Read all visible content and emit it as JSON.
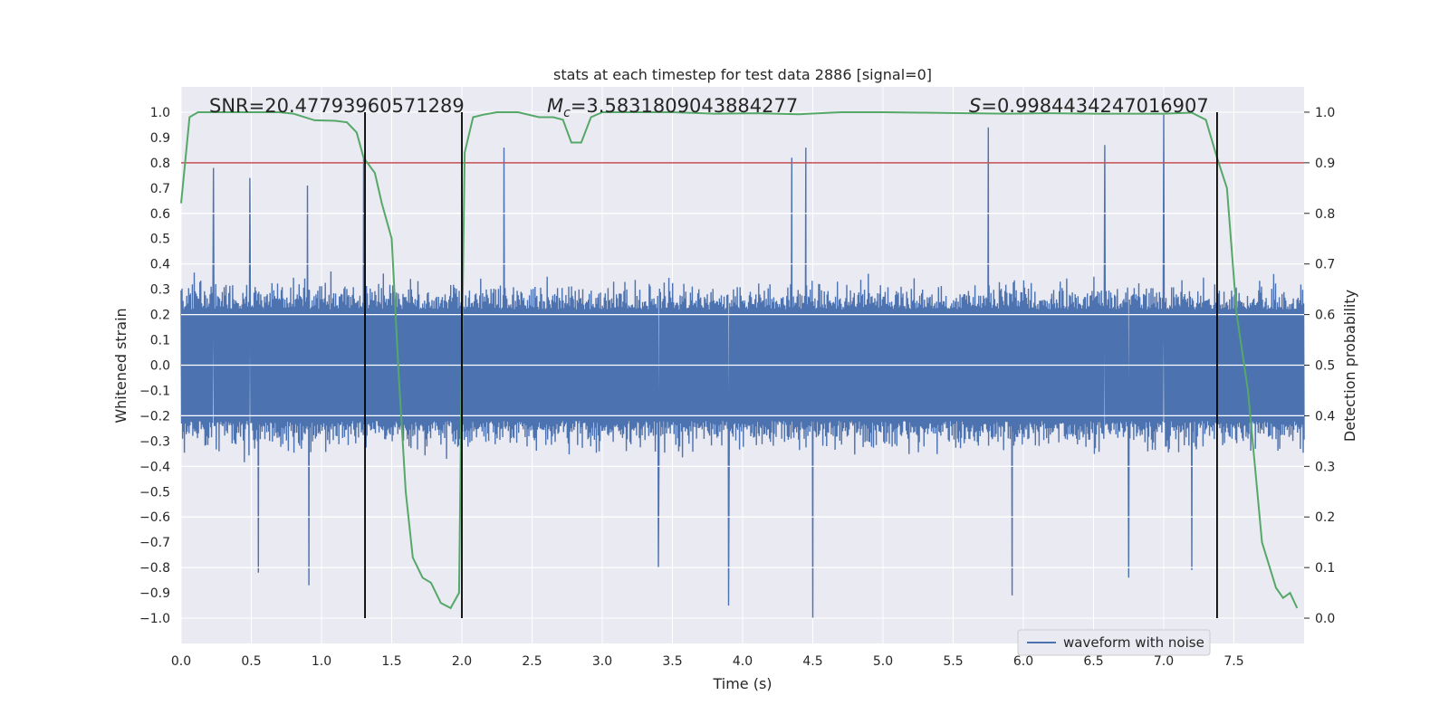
{
  "chart_data": {
    "type": "line",
    "title": "stats at each timestep for test data 2886 [signal=0]",
    "xlabel": "Time (s)",
    "ylabel_left": "Whitened strain",
    "ylabel_right": "Detection probability",
    "xlim": [
      0.0,
      8.0
    ],
    "ylim_left": [
      -1.1,
      1.1
    ],
    "ylim_right": [
      -0.05,
      1.05
    ],
    "x_ticks": [
      "0.0",
      "0.5",
      "1.0",
      "1.5",
      "2.0",
      "2.5",
      "3.0",
      "3.5",
      "4.0",
      "4.5",
      "5.0",
      "5.5",
      "6.0",
      "6.5",
      "7.0",
      "7.5"
    ],
    "y_ticks_left": [
      "1.0",
      "0.9",
      "0.8",
      "0.7",
      "0.6",
      "0.5",
      "0.4",
      "0.3",
      "0.2",
      "0.1",
      "0.0",
      "-0.1",
      "-0.2",
      "-0.3",
      "-0.4",
      "-0.5",
      "-0.6",
      "-0.7",
      "-0.8",
      "-0.9",
      "-1.0"
    ],
    "y_ticks_right": [
      "1.0",
      "0.9",
      "0.8",
      "0.7",
      "0.6",
      "0.5",
      "0.4",
      "0.3",
      "0.2",
      "0.1",
      "0.0"
    ],
    "grid": true,
    "annotations": {
      "snr_label": "SNR=20.47793960571289",
      "mc_symbol": "M",
      "mc_sub": "c",
      "mc_value": "=3.5831809043884277",
      "s_symbol": "S",
      "s_value": "=0.9984434247016907"
    },
    "threshold_right": 0.9,
    "vertical_lines_x": [
      1.31,
      2.0,
      7.38
    ],
    "series": [
      {
        "name": "waveform with noise",
        "color": "#4c72b0",
        "axis": "left",
        "envelope_pos_typical": 0.4,
        "envelope_neg_typical": -0.4,
        "notable_peaks": [
          {
            "x": 0.23,
            "y": 0.78
          },
          {
            "x": 0.49,
            "y": 0.74
          },
          {
            "x": 0.9,
            "y": 0.71
          },
          {
            "x": 2.3,
            "y": 0.86
          },
          {
            "x": 4.35,
            "y": 0.82
          },
          {
            "x": 4.45,
            "y": 0.86
          },
          {
            "x": 5.75,
            "y": 0.94
          },
          {
            "x": 7.0,
            "y": 0.99
          },
          {
            "x": 6.58,
            "y": 0.87
          },
          {
            "x": 1.3,
            "y": 0.82
          },
          {
            "x": 0.55,
            "y": -0.82
          },
          {
            "x": 0.91,
            "y": -0.87
          },
          {
            "x": 3.9,
            "y": -0.95
          },
          {
            "x": 4.5,
            "y": -1.0
          },
          {
            "x": 5.92,
            "y": -0.91
          },
          {
            "x": 7.2,
            "y": -0.81
          },
          {
            "x": 6.75,
            "y": -0.84
          },
          {
            "x": 3.4,
            "y": -0.8
          }
        ]
      },
      {
        "name": "",
        "color": "#55a868",
        "axis": "right",
        "x": [
          0.0,
          0.06,
          0.12,
          0.2,
          0.3,
          0.5,
          0.7,
          0.8,
          0.95,
          1.1,
          1.18,
          1.25,
          1.3,
          1.38,
          1.43,
          1.5,
          1.55,
          1.6,
          1.65,
          1.72,
          1.78,
          1.85,
          1.92,
          1.98,
          2.0,
          2.02,
          2.08,
          2.15,
          2.25,
          2.4,
          2.55,
          2.65,
          2.72,
          2.78,
          2.85,
          2.92,
          3.0,
          3.2,
          3.5,
          3.8,
          4.1,
          4.4,
          4.7,
          5.0,
          5.3,
          5.6,
          5.9,
          6.2,
          6.5,
          6.8,
          7.0,
          7.2,
          7.3,
          7.38,
          7.45,
          7.52,
          7.6,
          7.7,
          7.8,
          7.85,
          7.9,
          7.95
        ],
        "y": [
          0.82,
          0.99,
          1.0,
          1.0,
          1.0,
          1.0,
          1.0,
          0.997,
          0.984,
          0.983,
          0.98,
          0.96,
          0.91,
          0.88,
          0.82,
          0.75,
          0.48,
          0.25,
          0.12,
          0.08,
          0.07,
          0.03,
          0.02,
          0.05,
          0.52,
          0.92,
          0.99,
          0.995,
          1.0,
          1.0,
          0.99,
          0.99,
          0.985,
          0.94,
          0.94,
          0.99,
          1.0,
          1.0,
          1.0,
          0.997,
          0.998,
          0.996,
          1.0,
          1.0,
          0.999,
          0.998,
          0.997,
          0.998,
          0.997,
          0.997,
          0.997,
          0.999,
          0.985,
          0.91,
          0.85,
          0.6,
          0.45,
          0.15,
          0.06,
          0.04,
          0.05,
          0.02
        ]
      }
    ],
    "legend": {
      "placement": "bottom-right",
      "entries": [
        "waveform with noise"
      ]
    },
    "colors": {
      "axes_bg": "#eaeaf2",
      "grid": "#ffffff",
      "threshold": "#c44e52",
      "vline": "#000000",
      "waveform": "#4c72b0",
      "probability": "#55a868"
    }
  }
}
